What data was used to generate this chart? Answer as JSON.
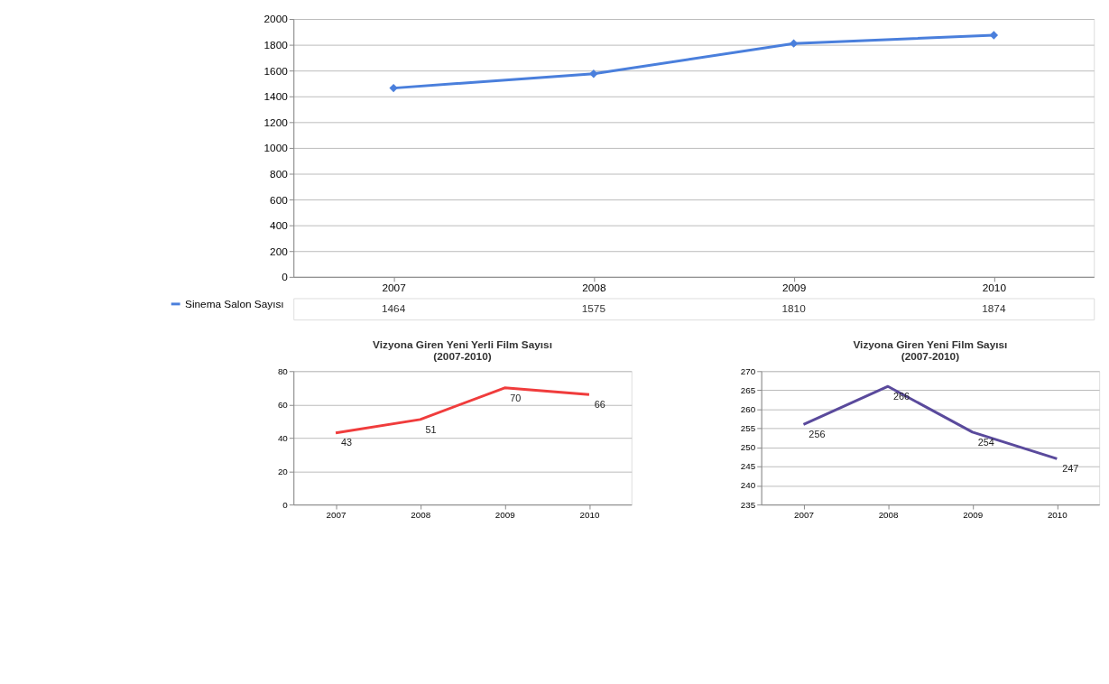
{
  "chart_data": [
    {
      "type": "line",
      "categories": [
        "2007",
        "2008",
        "2009",
        "2010"
      ],
      "series": [
        {
          "name": "Sinema Salon Sayısı",
          "color": "#4a7fdc",
          "values": [
            1464,
            1575,
            1810,
            1874
          ]
        }
      ],
      "ylim": [
        0,
        2000
      ],
      "yticks": [
        0,
        200,
        400,
        600,
        800,
        1000,
        1200,
        1400,
        1600,
        1800,
        2000
      ],
      "grid": "y",
      "marker": "diamond",
      "data_labels": true,
      "legend": "bottom"
    },
    {
      "type": "line",
      "title": "Vizyona Giren Yeni Yerli Film Sayısı\n(2007-2010)",
      "categories": [
        "2007",
        "2008",
        "2009",
        "2010"
      ],
      "series": [
        {
          "color": "#f03c3c",
          "values": [
            43,
            51,
            70,
            66
          ]
        }
      ],
      "ylim": [
        0,
        80
      ],
      "yticks": [
        0,
        20,
        40,
        60,
        80
      ],
      "grid": "y",
      "data_labels": true
    },
    {
      "type": "line",
      "title": "Vizyona Giren Yeni Film Sayısı\n(2007-2010)",
      "categories": [
        "2007",
        "2008",
        "2009",
        "2010"
      ],
      "series": [
        {
          "color": "#5a4a9c",
          "values": [
            256,
            266,
            254,
            247
          ]
        }
      ],
      "ylim": [
        235,
        270
      ],
      "yticks": [
        235,
        240,
        245,
        250,
        255,
        260,
        265,
        270
      ],
      "grid": "y",
      "data_labels": true
    }
  ]
}
